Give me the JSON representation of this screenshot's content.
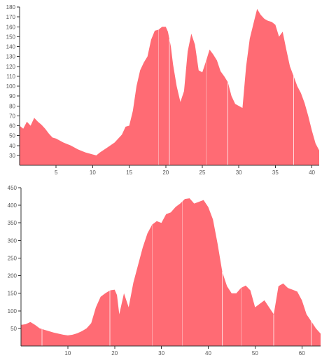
{
  "colors": {
    "fill": "#ff6b74",
    "axis": "#333333",
    "tick_text": "#555555",
    "divider": "#ffffff"
  },
  "chart_data": [
    {
      "type": "area",
      "title": "",
      "xlabel": "",
      "ylabel": "",
      "xlim": [
        0,
        41
      ],
      "ylim": [
        20,
        180
      ],
      "xticks": [
        5,
        10,
        15,
        20,
        25,
        30,
        35,
        40
      ],
      "yticks": [
        30,
        40,
        50,
        60,
        70,
        80,
        90,
        100,
        110,
        120,
        130,
        140,
        150,
        160,
        170,
        180
      ],
      "grid": false,
      "dividers_x": [
        19.0,
        20.5,
        25.5,
        28.5,
        37.5
      ],
      "series": [
        {
          "x": [
            0,
            0.5,
            1,
            1.5,
            2,
            2.5,
            3,
            3.5,
            4,
            4.5,
            5,
            6,
            7,
            8,
            9,
            10,
            10.5,
            11,
            12,
            13,
            14,
            14.5,
            15,
            15.5,
            16,
            16.5,
            17,
            17.5,
            18,
            18.5,
            19,
            19.5,
            20,
            20.3,
            20.7,
            21,
            21.5,
            22,
            22.5,
            23,
            23.5,
            24,
            24.5,
            25,
            25.5,
            26,
            26.5,
            27,
            27.5,
            28,
            28.5,
            29,
            29.5,
            30,
            30.5,
            31,
            31.5,
            32,
            32.5,
            33,
            33.5,
            34,
            34.5,
            35,
            35.5,
            36,
            36.5,
            37,
            37.5,
            38,
            38.5,
            39,
            39.5,
            40,
            40.5,
            41
          ],
          "y": [
            60,
            57,
            64,
            60,
            68,
            64,
            61,
            57,
            52,
            48,
            47,
            43,
            40,
            36,
            33,
            31,
            30,
            33,
            38,
            43,
            51,
            59,
            60,
            75,
            100,
            116,
            124,
            130,
            147,
            156,
            157,
            160,
            160,
            155,
            140,
            122,
            100,
            84,
            95,
            135,
            153,
            142,
            116,
            114,
            125,
            137,
            132,
            126,
            115,
            110,
            104,
            90,
            82,
            80,
            78,
            120,
            148,
            163,
            178,
            172,
            168,
            166,
            165,
            162,
            150,
            155,
            137,
            120,
            110,
            100,
            93,
            83,
            70,
            55,
            42,
            35
          ]
        }
      ]
    },
    {
      "type": "area",
      "title": "",
      "xlabel": "",
      "ylabel": "",
      "xlim": [
        0,
        64
      ],
      "ylim": [
        0,
        450
      ],
      "xticks": [
        10,
        20,
        30,
        40,
        50,
        60
      ],
      "yticks": [
        50,
        100,
        150,
        200,
        250,
        300,
        350,
        400,
        450
      ],
      "grid": false,
      "dividers_x": [
        4.5,
        19.0,
        28.0,
        34.5,
        43.0,
        47.0,
        54.0,
        62.0
      ],
      "series": [
        {
          "x": [
            0,
            1,
            2,
            3,
            4,
            5,
            6,
            7,
            8,
            9,
            10,
            11,
            12,
            13,
            14,
            15,
            16,
            17,
            18,
            19,
            20,
            20.5,
            21,
            22,
            23,
            24,
            25,
            26,
            27,
            28,
            29,
            30,
            31,
            32,
            33,
            34,
            35,
            36,
            37,
            38,
            39,
            40,
            41,
            42,
            43,
            44,
            45,
            46,
            47,
            48,
            49,
            50,
            51,
            52,
            53,
            54,
            55,
            56,
            57,
            58,
            59,
            60,
            61,
            62,
            63,
            64
          ],
          "y": [
            60,
            62,
            68,
            60,
            50,
            46,
            42,
            38,
            35,
            32,
            30,
            32,
            36,
            42,
            50,
            65,
            110,
            140,
            150,
            158,
            160,
            145,
            90,
            150,
            110,
            180,
            230,
            280,
            320,
            345,
            355,
            350,
            375,
            380,
            395,
            405,
            418,
            420,
            405,
            410,
            415,
            395,
            360,
            290,
            210,
            170,
            150,
            150,
            165,
            172,
            158,
            110,
            120,
            130,
            110,
            90,
            170,
            178,
            165,
            160,
            155,
            130,
            90,
            70,
            50,
            35
          ]
        }
      ]
    }
  ]
}
